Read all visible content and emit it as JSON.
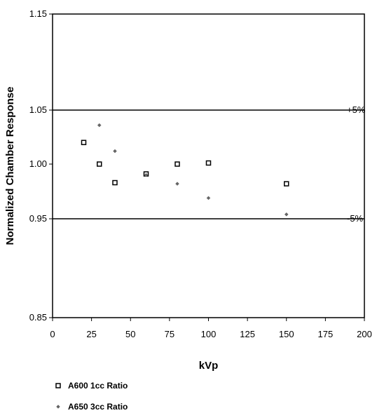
{
  "chart_data": {
    "type": "scatter",
    "title": "",
    "xlabel": "kVp",
    "ylabel": "Normalized Chamber Response",
    "xlim": [
      0,
      200
    ],
    "ylim": [
      0.85,
      1.15
    ],
    "x_ticks": [
      "0",
      "25",
      "50",
      "75",
      "100",
      "125",
      "150",
      "175",
      "200"
    ],
    "y_ticks": [
      "0.85",
      "0.95",
      "1.00",
      "1.05",
      "1.15"
    ],
    "y_tick_values": [
      0.85,
      0.95,
      1.0,
      1.05,
      1.15
    ],
    "grid": false,
    "legend_position": "bottom-left",
    "reference_lines": [
      {
        "y": 1.05,
        "label": "+5%"
      },
      {
        "y": 0.95,
        "label": "-5%"
      }
    ],
    "series": [
      {
        "name": "A600 1cc Ratio",
        "marker": "open-square",
        "color": "#000000",
        "x": [
          20,
          30,
          40,
          60,
          80,
          100,
          150
        ],
        "y": [
          1.02,
          1.0,
          0.983,
          0.991,
          1.0,
          1.001,
          0.982
        ]
      },
      {
        "name": "A650 3cc Ratio",
        "marker": "small-diamond",
        "color": "#666666",
        "x": [
          30,
          40,
          60,
          80,
          100,
          150
        ],
        "y": [
          1.036,
          1.012,
          0.99,
          0.982,
          0.969,
          0.954
        ]
      }
    ]
  }
}
